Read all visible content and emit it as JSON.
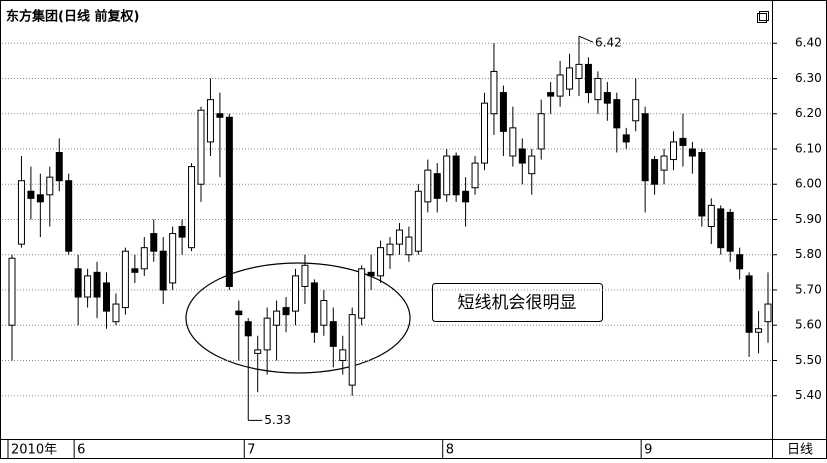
{
  "chart_data": {
    "type": "candlestick",
    "title": "东方集团(日线 前复权)",
    "period_label": "日线",
    "callout": "短线机会很明显",
    "up_color": "#ffffff",
    "down_color": "#000000",
    "grid": true,
    "categories": [
      null,
      null,
      null,
      null,
      null,
      null,
      null,
      null,
      null,
      null,
      null,
      null,
      null,
      null,
      null,
      null,
      null,
      null,
      null,
      null,
      null,
      null,
      null,
      null,
      null,
      null,
      null,
      null,
      null,
      null,
      null,
      null,
      null,
      null,
      null,
      null,
      null,
      null,
      null,
      null,
      null,
      null,
      null,
      null,
      null,
      null,
      null,
      null,
      null,
      null,
      null,
      null,
      null,
      null,
      null,
      null,
      null,
      null,
      null,
      null,
      null,
      null,
      null,
      null,
      null,
      null,
      null,
      null,
      null,
      null,
      null,
      null,
      null,
      null,
      null,
      null,
      null,
      null,
      null,
      null,
      null
    ],
    "open": [
      5.6,
      5.83,
      5.98,
      5.97,
      5.97,
      6.09,
      6.01,
      5.76,
      5.68,
      5.75,
      5.72,
      5.61,
      5.65,
      5.76,
      5.76,
      5.86,
      5.81,
      5.72,
      5.88,
      5.82,
      6.0,
      6.12,
      6.2,
      6.19,
      5.64,
      5.61,
      5.52,
      5.53,
      5.6,
      5.65,
      5.64,
      5.71,
      5.72,
      5.6,
      5.61,
      5.5,
      5.43,
      5.62,
      5.75,
      5.74,
      5.8,
      5.83,
      5.8,
      5.81,
      5.95,
      6.03,
      5.97,
      6.08,
      5.98,
      5.99,
      6.06,
      6.2,
      6.26,
      6.08,
      6.1,
      6.03,
      6.1,
      6.26,
      6.25,
      6.27,
      6.3,
      6.34,
      6.24,
      6.26,
      6.24,
      6.14,
      6.18,
      6.2,
      6.07,
      6.04,
      6.07,
      6.13,
      6.1,
      6.09,
      5.88,
      5.93,
      5.92,
      5.8,
      5.74,
      5.58,
      5.61
    ],
    "high": [
      5.8,
      6.08,
      6.05,
      6.03,
      6.05,
      6.13,
      6.03,
      5.8,
      5.76,
      5.78,
      5.75,
      5.69,
      5.82,
      5.8,
      5.85,
      5.9,
      5.85,
      5.88,
      5.9,
      6.06,
      6.22,
      6.3,
      6.26,
      6.2,
      5.67,
      5.62,
      5.57,
      5.65,
      5.67,
      5.68,
      5.76,
      5.8,
      5.73,
      5.7,
      5.65,
      5.57,
      5.65,
      5.77,
      5.8,
      5.84,
      5.85,
      5.89,
      5.88,
      6.0,
      6.07,
      6.06,
      6.1,
      6.09,
      6.02,
      6.08,
      6.26,
      6.4,
      6.28,
      6.22,
      6.13,
      6.1,
      6.24,
      6.29,
      6.35,
      6.37,
      6.42,
      6.36,
      6.32,
      6.29,
      6.26,
      6.16,
      6.3,
      6.22,
      6.08,
      6.1,
      6.15,
      6.2,
      6.12,
      6.1,
      5.96,
      5.94,
      5.93,
      5.82,
      5.75,
      5.64,
      5.75
    ],
    "low": [
      5.5,
      5.82,
      5.9,
      5.85,
      5.88,
      5.98,
      5.8,
      5.6,
      5.65,
      5.62,
      5.59,
      5.6,
      5.63,
      5.72,
      5.74,
      5.78,
      5.66,
      5.7,
      5.8,
      5.81,
      5.95,
      6.08,
      6.02,
      5.7,
      5.5,
      5.33,
      5.41,
      5.46,
      5.5,
      5.58,
      5.6,
      5.66,
      5.55,
      5.57,
      5.48,
      5.46,
      5.4,
      5.6,
      5.7,
      5.72,
      5.76,
      5.8,
      5.78,
      5.8,
      5.92,
      5.92,
      5.95,
      5.95,
      5.88,
      5.97,
      6.04,
      6.14,
      6.08,
      6.05,
      6.0,
      5.97,
      6.07,
      6.2,
      6.22,
      6.25,
      6.25,
      6.23,
      6.2,
      6.18,
      6.09,
      6.1,
      6.15,
      5.92,
      5.97,
      6.0,
      6.04,
      6.05,
      6.03,
      5.88,
      5.83,
      5.8,
      5.78,
      5.73,
      5.51,
      5.52,
      5.55
    ],
    "close": [
      5.79,
      6.01,
      5.96,
      5.95,
      6.02,
      6.01,
      5.81,
      5.68,
      5.74,
      5.68,
      5.64,
      5.66,
      5.81,
      5.75,
      5.82,
      5.81,
      5.7,
      5.86,
      5.85,
      6.05,
      6.21,
      6.24,
      6.19,
      5.71,
      5.63,
      5.57,
      5.53,
      5.62,
      5.64,
      5.63,
      5.74,
      5.77,
      5.58,
      5.67,
      5.54,
      5.53,
      5.63,
      5.76,
      5.74,
      5.82,
      5.83,
      5.87,
      5.85,
      5.98,
      6.04,
      5.96,
      6.08,
      5.97,
      5.95,
      6.06,
      6.23,
      6.32,
      6.15,
      6.16,
      6.06,
      6.08,
      6.2,
      6.25,
      6.31,
      6.33,
      6.34,
      6.26,
      6.3,
      6.23,
      6.16,
      6.12,
      6.24,
      6.01,
      6.0,
      6.08,
      6.12,
      6.11,
      6.08,
      5.91,
      5.94,
      5.82,
      5.81,
      5.76,
      5.58,
      5.59,
      5.66
    ],
    "ylim": [
      5.28,
      6.5
    ],
    "yticks": [
      {
        "value": 5.4,
        "label": "5.40"
      },
      {
        "value": 5.5,
        "label": "5.50"
      },
      {
        "value": 5.6,
        "label": "5.60"
      },
      {
        "value": 5.7,
        "label": "5.70"
      },
      {
        "value": 5.8,
        "label": "5.80"
      },
      {
        "value": 5.9,
        "label": "5.90"
      },
      {
        "value": 6.0,
        "label": "6.00"
      },
      {
        "value": 6.1,
        "label": "6.10"
      },
      {
        "value": 6.2,
        "label": "6.20"
      },
      {
        "value": 6.3,
        "label": "6.30"
      },
      {
        "value": 6.4,
        "label": "6.40"
      }
    ],
    "xticks": [
      {
        "value": 0,
        "label": "2010年"
      },
      {
        "value": 7,
        "label": "6"
      },
      {
        "value": 25,
        "label": "7"
      },
      {
        "value": 46,
        "label": "8"
      },
      {
        "value": 67,
        "label": "9"
      }
    ]
  }
}
